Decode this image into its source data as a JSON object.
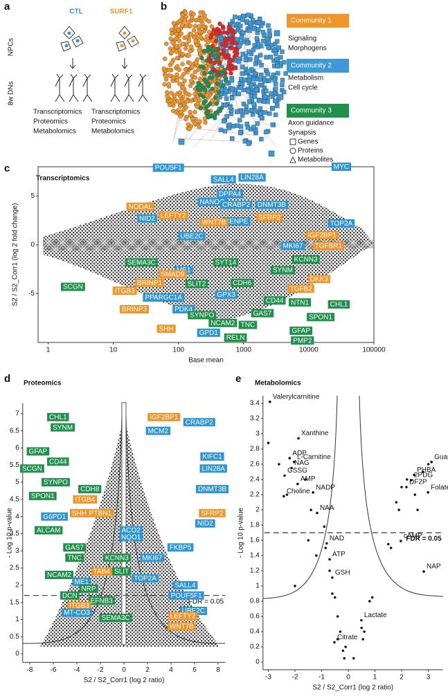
{
  "panel_labels": [
    "a",
    "b",
    "c",
    "d",
    "e"
  ],
  "panel_a": {
    "groups": [
      "CTL",
      "SURF1"
    ],
    "group_colors": [
      "#2f95d3",
      "#f0952a"
    ],
    "stages": [
      "NPCs",
      "8w DNs"
    ],
    "omics": [
      "Transcriptomics",
      "Proteomics",
      "Metabolomics"
    ]
  },
  "panel_b": {
    "communities": [
      {
        "name": "Community 1",
        "color": "#f0952a",
        "terms": [
          "Signaling",
          "Morphogens"
        ]
      },
      {
        "name": "Community 2",
        "color": "#3d9ad6",
        "terms": [
          "Metabolism",
          "Cell cycle"
        ]
      },
      {
        "name": "Community 3",
        "color": "#21904c",
        "terms": [
          "Axon guidance",
          "Synapsis"
        ]
      }
    ],
    "legend": [
      "Genes",
      "Proteins",
      "Metabolites"
    ]
  },
  "chart_data": [
    {
      "type": "scatter",
      "title": "Transcriptomics",
      "x_label": "Base mean",
      "y_label": "S2 / S2_Corr1 (log 2 fold change)",
      "log_x": true,
      "xlim": [
        0.7,
        100000
      ],
      "xticks": [
        1,
        10,
        100,
        1000,
        10000,
        100000
      ],
      "ylim": [
        -10,
        8
      ],
      "yticks": [
        -5,
        0,
        5
      ],
      "points": {
        "labels": [
          "POU5F1",
          "MYC",
          "SALL4",
          "LIN28A",
          "DPPA4",
          "NODAL",
          "NID2",
          "NANOG",
          "CRABP2",
          "DNMT3B",
          "LEFTY2",
          "SFRP2",
          "TOP2A",
          "IGF2BP1",
          "CENPE",
          "WNT7B",
          "MKI67",
          "TGFBR1",
          "UBE2C",
          "SEMA3C",
          "ME1",
          "SYT14",
          "KCNN3",
          "SYNM",
          "SMAD9",
          "DKK3",
          "SCGN",
          "ITGB3",
          "BRINP1",
          "SLIT2",
          "CDH6",
          "TGFB2",
          "PPARGC1A",
          "GPX3",
          "CD44",
          "NTN1",
          "CHL1",
          "BRINP3",
          "PDK4",
          "SYNPO",
          "GAS7",
          "SPON1",
          "NCAM2",
          "TNC",
          "SHH",
          "GPD1",
          "RELN",
          "GFAP",
          "PMP2"
        ],
        "x": [
          70,
          31600,
          490,
          1350,
          615,
          26,
          33,
          330,
          770,
          2700,
          83,
          2500,
          31600,
          16000,
          770,
          350,
          5700,
          20000,
          160,
          27,
          120,
          530,
          9000,
          4000,
          81,
          14400,
          2.4,
          15,
          36,
          190,
          950,
          7600,
          59,
          540,
          3000,
          7300,
          29000,
          21,
          120,
          230,
          1940,
          15200,
          480,
          1160,
          65,
          290,
          750,
          7600,
          8000
        ],
        "y": [
          7.9,
          8.0,
          6.7,
          6.9,
          5.2,
          3.9,
          2.7,
          4.4,
          4.1,
          4.1,
          3.0,
          2.8,
          2.2,
          1.0,
          2.4,
          2.3,
          -0.1,
          -0.1,
          0.9,
          -1.8,
          -2.6,
          -1.8,
          -1.5,
          -2.6,
          -3.0,
          -3.5,
          -4.3,
          -4.7,
          -3.9,
          -4.0,
          -3.9,
          -4.5,
          -5.4,
          -5.1,
          -5.7,
          -5.9,
          -6.1,
          -6.6,
          -6.6,
          -7.2,
          -7.0,
          -7.4,
          -8.0,
          -8.2,
          -8.6,
          -9.0,
          -9.5,
          -8.8,
          -9.8
        ],
        "colors": [
          "#2f95d3",
          "#2f95d3",
          "#2f95d3",
          "#2f95d3",
          "#2f95d3",
          "#f0952a",
          "#2f95d3",
          "#2f95d3",
          "#2f95d3",
          "#2f95d3",
          "#f0952a",
          "#f0952a",
          "#2f95d3",
          "#f0952a",
          "#2f95d3",
          "#f0952a",
          "#2f95d3",
          "#f0952a",
          "#2f95d3",
          "#21904c",
          "#2f95d3",
          "#21904c",
          "#21904c",
          "#21904c",
          "#f0952a",
          "#f0952a",
          "#21904c",
          "#f0952a",
          "#f0952a",
          "#21904c",
          "#21904c",
          "#f0952a",
          "#2f95d3",
          "#2f95d3",
          "#21904c",
          "#21904c",
          "#21904c",
          "#f0952a",
          "#2f95d3",
          "#21904c",
          "#21904c",
          "#21904c",
          "#21904c",
          "#21904c",
          "#f0952a",
          "#2f95d3",
          "#21904c",
          "#21904c",
          "#21904c"
        ]
      }
    },
    {
      "type": "scatter",
      "title": "Proteomics",
      "x_label": "S2 / S2_Corr1 (log 2 ratio)",
      "y_label": "- Log 10 p-value",
      "xlim": [
        -8.6,
        8.6
      ],
      "xticks": [
        -8,
        -6,
        -4,
        -2,
        0,
        2,
        4,
        6,
        8
      ],
      "ylim": [
        -0.25,
        7.3
      ],
      "yticks": [
        0,
        0.5,
        1,
        1.5,
        2,
        2.5,
        3,
        3.5,
        4,
        4.5,
        5,
        5.5,
        6,
        6.5,
        7
      ],
      "threshold": {
        "value": 1.7,
        "label": "FDR = 0.05"
      },
      "points": {
        "labels": [
          "CHL1",
          "SYNM",
          "IGF2BP1",
          "CRABP2",
          "MCM2",
          "GFAP",
          "SCGN",
          "CD44",
          "KIFC1",
          "LIN28A",
          "SYNPO",
          "CDH8",
          "DNMT3B",
          "SPON1",
          "ITGB4",
          "SPTBN1",
          "SHH",
          "G6PD1",
          "SFRP2",
          "ALCAM",
          "ACO2",
          "NQO1",
          "NID2",
          "FKBP5",
          "GAS7",
          "TNC",
          "KCNN3",
          "MKI67",
          "TAB4",
          "SLIT",
          "TOP2A",
          "NCAM2",
          "ME1",
          "NRP",
          "SALL4",
          "DCN",
          "POUF5F1",
          "EFNB3",
          "UBE2C",
          "ITGB3",
          "MT-CO3",
          "SEMA3C",
          "LEFTY2",
          "WNT7B"
        ],
        "x": [
          -5.6,
          -5.2,
          3.4,
          6.4,
          2.9,
          -7.3,
          -7.8,
          -5.6,
          7.5,
          7.6,
          -5.8,
          -2.9,
          7.5,
          -6.9,
          -3.3,
          -2.2,
          -3.8,
          -5.9,
          7.5,
          -6.4,
          0.6,
          0.6,
          6.9,
          4.8,
          -4.2,
          -4.2,
          -0.6,
          2.4,
          -1.9,
          -0.2,
          1.8,
          -5.5,
          -3.6,
          -3.0,
          5.2,
          -4.6,
          5.3,
          -1.9,
          5.9,
          -3.8,
          -4.0,
          -0.7,
          5.0,
          4.9
        ],
        "y": [
          6.9,
          6.6,
          6.9,
          6.75,
          6.5,
          5.9,
          5.4,
          5.6,
          5.75,
          5.4,
          5.0,
          4.8,
          4.8,
          4.6,
          4.5,
          4.1,
          4.1,
          4.0,
          4.1,
          3.6,
          3.6,
          3.4,
          3.8,
          3.1,
          3.1,
          2.8,
          2.8,
          2.8,
          2.4,
          2.4,
          2.2,
          2.3,
          2.1,
          1.9,
          2.0,
          1.7,
          1.7,
          1.55,
          1.25,
          1.4,
          1.2,
          1.05,
          1.1,
          0.8
        ],
        "colors": [
          "#21904c",
          "#21904c",
          "#f0952a",
          "#2f95d3",
          "#2f95d3",
          "#21904c",
          "#21904c",
          "#21904c",
          "#2f95d3",
          "#2f95d3",
          "#21904c",
          "#21904c",
          "#2f95d3",
          "#21904c",
          "#f0952a",
          "#f0952a",
          "#f0952a",
          "#2f95d3",
          "#f0952a",
          "#21904c",
          "#2f95d3",
          "#2f95d3",
          "#2f95d3",
          "#2f95d3",
          "#21904c",
          "#21904c",
          "#21904c",
          "#2f95d3",
          "#f0952a",
          "#21904c",
          "#2f95d3",
          "#21904c",
          "#2f95d3",
          "#21904c",
          "#2f95d3",
          "#21904c",
          "#2f95d3",
          "#21904c",
          "#2f95d3",
          "#f0952a",
          "#2f95d3",
          "#21904c",
          "#f0952a",
          "#f0952a"
        ]
      }
    },
    {
      "type": "scatter",
      "title": "Metabolomics",
      "x_label": "S2 / S2_Corr1 (log 2 ratio)",
      "y_label": "- Log 10 p-value",
      "xlim": [
        -3.2,
        3.55
      ],
      "xticks": [
        -3,
        -2,
        -1,
        0,
        1,
        2,
        3
      ],
      "ylim": [
        -0.1,
        3.5
      ],
      "yticks": [
        0,
        0.2,
        0.4,
        0.6,
        0.8,
        1,
        1.2,
        1.4,
        1.6,
        1.8,
        2,
        2.2,
        2.4,
        2.6,
        2.8,
        3,
        3.2,
        3.4
      ],
      "threshold": {
        "value": 1.7,
        "label": "FDR = 0.05"
      },
      "points": {
        "labels": [
          "Valerylcarnitine",
          "Xanthine",
          "ADP",
          "L-Carnitine",
          "NAG",
          "GSSG",
          "AMP",
          "NADP",
          "Choline",
          "NAA",
          "NAD",
          "ATP",
          "GSH",
          "Lactate",
          "Citrate",
          "Guanine",
          "PHBA",
          "2PDG",
          "DF2P",
          "Folate",
          "cAMP",
          "NAP"
        ],
        "x": [
          -2.94,
          -1.87,
          -2.2,
          -2.03,
          -2.13,
          -2.39,
          -1.9,
          -1.32,
          -2.42,
          -1.17,
          -0.81,
          -0.7,
          -0.6,
          0.49,
          -0.52,
          3.12,
          2.47,
          2.36,
          2.18,
          2.99,
          1.97,
          2.83
        ],
        "y": [
          3.42,
          2.94,
          2.68,
          2.63,
          2.55,
          2.45,
          2.34,
          2.23,
          2.18,
          1.96,
          1.56,
          1.35,
          1.11,
          0.55,
          0.26,
          2.63,
          2.46,
          2.39,
          2.3,
          2.23,
          1.59,
          1.19
        ]
      },
      "other_points": {
        "x": [
          -3.0,
          -2.6,
          -2.3,
          -1.6,
          -1.4,
          -1.5,
          -1.2,
          -0.9,
          -0.85,
          -0.7,
          -0.6,
          -0.5,
          -0.4,
          -0.3,
          -0.2,
          -0.15,
          -0.1,
          0.5,
          0.6,
          0.55,
          0.8,
          0.9,
          1.5,
          1.6,
          1.8,
          1.9,
          2.0,
          2.2,
          2.5,
          2.6,
          2.8,
          3.0,
          -2.0,
          -0.4,
          0.2
        ],
        "y": [
          2.88,
          2.6,
          2.2,
          2.4,
          2.0,
          1.6,
          1.4,
          1.78,
          1.5,
          1.2,
          0.9,
          0.85,
          0.6,
          0.4,
          0.15,
          0.05,
          0.2,
          0.45,
          0.4,
          0.3,
          0.8,
          0.85,
          1.55,
          1.5,
          2.1,
          2.0,
          2.3,
          2.4,
          2.2,
          2.0,
          2.5,
          2.6,
          1.0,
          0.3,
          0.05
        ]
      }
    }
  ]
}
